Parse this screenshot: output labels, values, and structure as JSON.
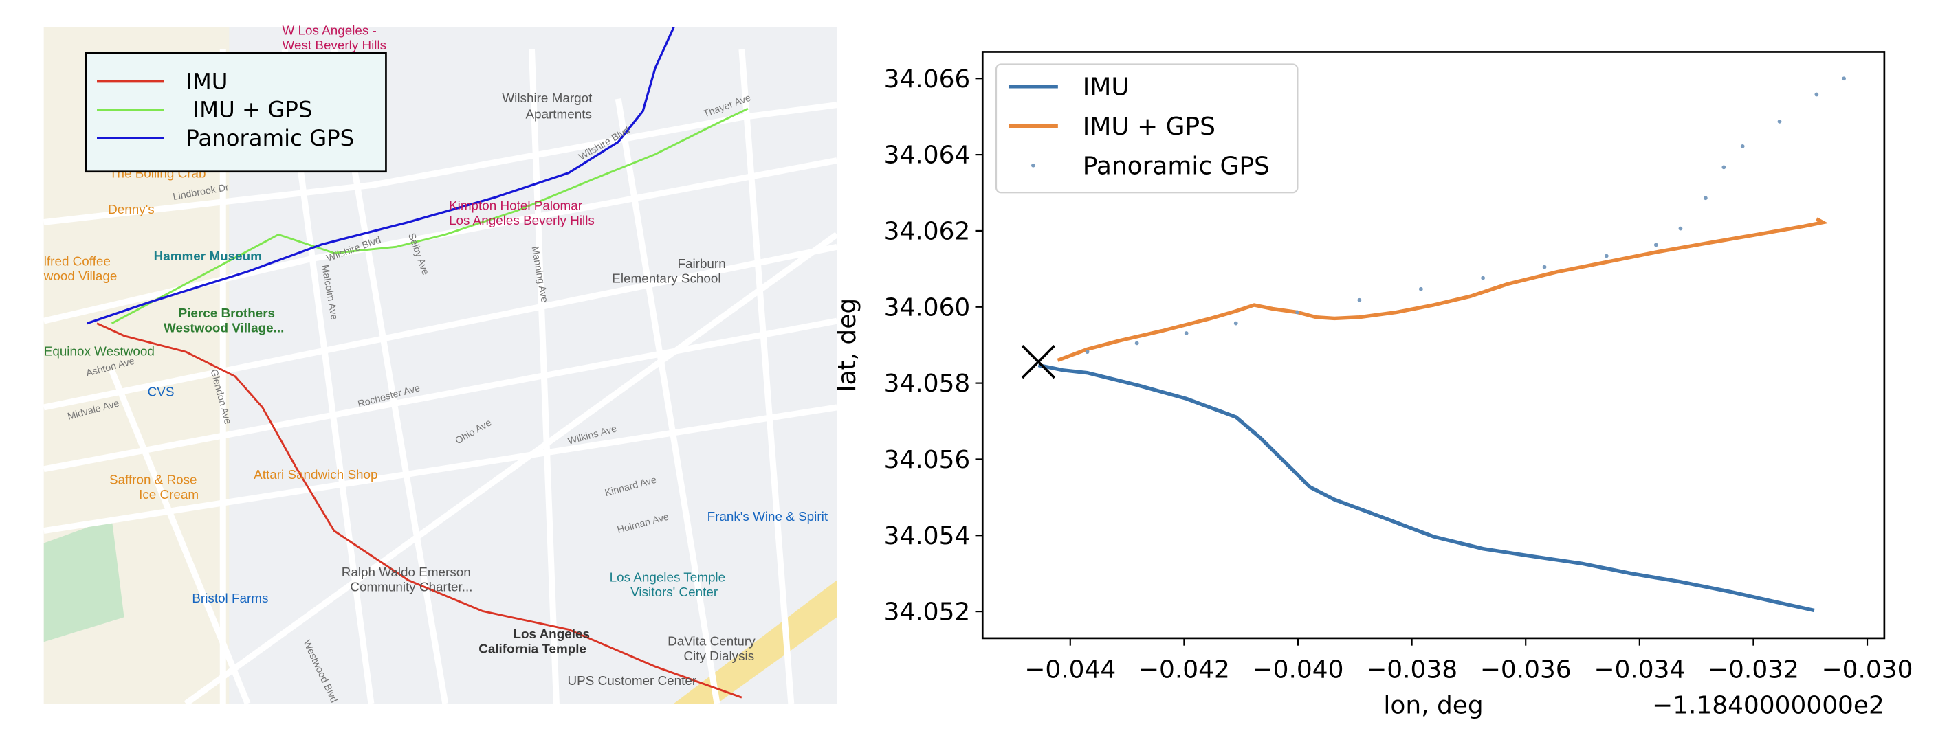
{
  "map": {
    "legend": [
      "IMU",
      " IMU + GPS",
      "Panoramic GPS"
    ],
    "labels": [
      "W Los Angeles -",
      "West Beverly Hills",
      "Wilshire Margot",
      "Apartments",
      "Kimpton Hotel Palomar",
      "Los Angeles Beverly Hills",
      "Denny's",
      "Hammer Museum",
      "lfred Coffee",
      "wood Village",
      "Pierce Brothers",
      "Westwood Village...",
      "Equinox Westwood",
      "CVS",
      "Fairburn",
      "Elementary School",
      "Saffron & Rose",
      "Ice Cream",
      "Attari Sandwich Shop",
      "Frank's Wine & Spirit",
      "Ralph Waldo Emerson",
      "Community Charter...",
      "Los Angeles Temple",
      "Visitors' Center",
      "Bristol Farms",
      "Los Angeles",
      "California Temple",
      "DaVita Century",
      "City Dialysis",
      "UPS Customer Center",
      "The Boiling Crab"
    ],
    "streets": [
      "Wilshire Blvd",
      "Lindbrook Dr",
      "Ashton Ave",
      "Rochester Ave",
      "Ohio Ave",
      "Wilkins Ave",
      "Kinnard Ave",
      "Holman Ave",
      "Westwood Blvd",
      "Selby Ave",
      "Malcolm Ave",
      "Glendon Ave",
      "Manning Ave",
      "Thayer Ave",
      "Midvale Ave",
      "Wilshire Blvd"
    ]
  },
  "chart_data": {
    "type": "line",
    "xlabel": "lon, deg",
    "ylabel": "lat, deg",
    "x_offset_label": "−1.1840000000e2",
    "xlim": [
      -0.04554,
      -0.0297
    ],
    "ylim": [
      34.0513,
      34.0667
    ],
    "xticks": [
      {
        "value": -0.044,
        "label": "−0.044"
      },
      {
        "value": -0.042,
        "label": "−0.042"
      },
      {
        "value": -0.04,
        "label": "−0.040"
      },
      {
        "value": -0.038,
        "label": "−0.038"
      },
      {
        "value": -0.036,
        "label": "−0.036"
      },
      {
        "value": -0.034,
        "label": "−0.034"
      },
      {
        "value": -0.032,
        "label": "−0.032"
      },
      {
        "value": -0.03,
        "label": "−0.030"
      }
    ],
    "yticks": [
      34.052,
      34.054,
      34.056,
      34.058,
      {
        "value": 34.06,
        "label": "34.060"
      },
      34.062,
      34.064,
      34.066
    ],
    "legend_loc": "upper left",
    "series": [
      {
        "name": "IMU",
        "color": "#3b73aa",
        "style": "line",
        "x": [
          -0.04456,
          -0.04413,
          -0.0437,
          -0.04283,
          -0.04196,
          -0.04109,
          -0.04066,
          -0.04022,
          -0.03979,
          -0.03936,
          -0.03849,
          -0.03762,
          -0.03675,
          -0.03588,
          -0.03501,
          -0.03415,
          -0.03328,
          -0.03241,
          -0.03154,
          -0.03093
        ],
        "values": [
          34.05847,
          34.05834,
          34.05827,
          34.05795,
          34.05759,
          34.05711,
          34.05656,
          34.05591,
          34.05527,
          34.05494,
          34.05446,
          34.05397,
          34.05365,
          34.05345,
          34.05326,
          34.053,
          34.05278,
          34.05252,
          34.05223,
          34.05203
        ]
      },
      {
        "name": "IMU + GPS",
        "color": "#e8873a",
        "style": "line",
        "x": [
          -0.04422,
          -0.0437,
          -0.04315,
          -0.04239,
          -0.04153,
          -0.04109,
          -0.04077,
          -0.04044,
          -0.04001,
          -0.03968,
          -0.03936,
          -0.03892,
          -0.03827,
          -0.03762,
          -0.03697,
          -0.03632,
          -0.03545,
          -0.03458,
          -0.03371,
          -0.03284,
          -0.03198,
          -0.03111,
          -0.03078,
          -0.03089
        ],
        "values": [
          34.0586,
          34.05889,
          34.05911,
          34.05937,
          34.0597,
          34.05989,
          34.06005,
          34.05995,
          34.05986,
          34.05973,
          34.0597,
          34.05973,
          34.05986,
          34.06005,
          34.06028,
          34.0606,
          34.06092,
          34.06118,
          34.06144,
          34.06167,
          34.06189,
          34.06212,
          34.06222,
          34.06231
        ]
      },
      {
        "name": "Panoramic GPS",
        "color": "#7a9cbf",
        "style": "scatter",
        "x": [
          -0.04456,
          -0.0437,
          -0.04283,
          -0.04196,
          -0.04109,
          -0.04001,
          -0.03892,
          -0.03784,
          -0.03675,
          -0.03567,
          -0.03458,
          -0.03371,
          -0.03328,
          -0.03284,
          -0.03252,
          -0.03219,
          -0.03154,
          -0.03089,
          -0.03041
        ],
        "values": [
          34.05856,
          34.05882,
          34.05905,
          34.05931,
          34.05957,
          34.05986,
          34.06018,
          34.06047,
          34.06076,
          34.06105,
          34.06134,
          34.06163,
          34.06206,
          34.06286,
          34.06367,
          34.06422,
          34.06487,
          34.06558,
          34.066
        ]
      }
    ],
    "start_marker": {
      "x": -0.04456,
      "y": 34.05856,
      "color": "#000000"
    }
  }
}
